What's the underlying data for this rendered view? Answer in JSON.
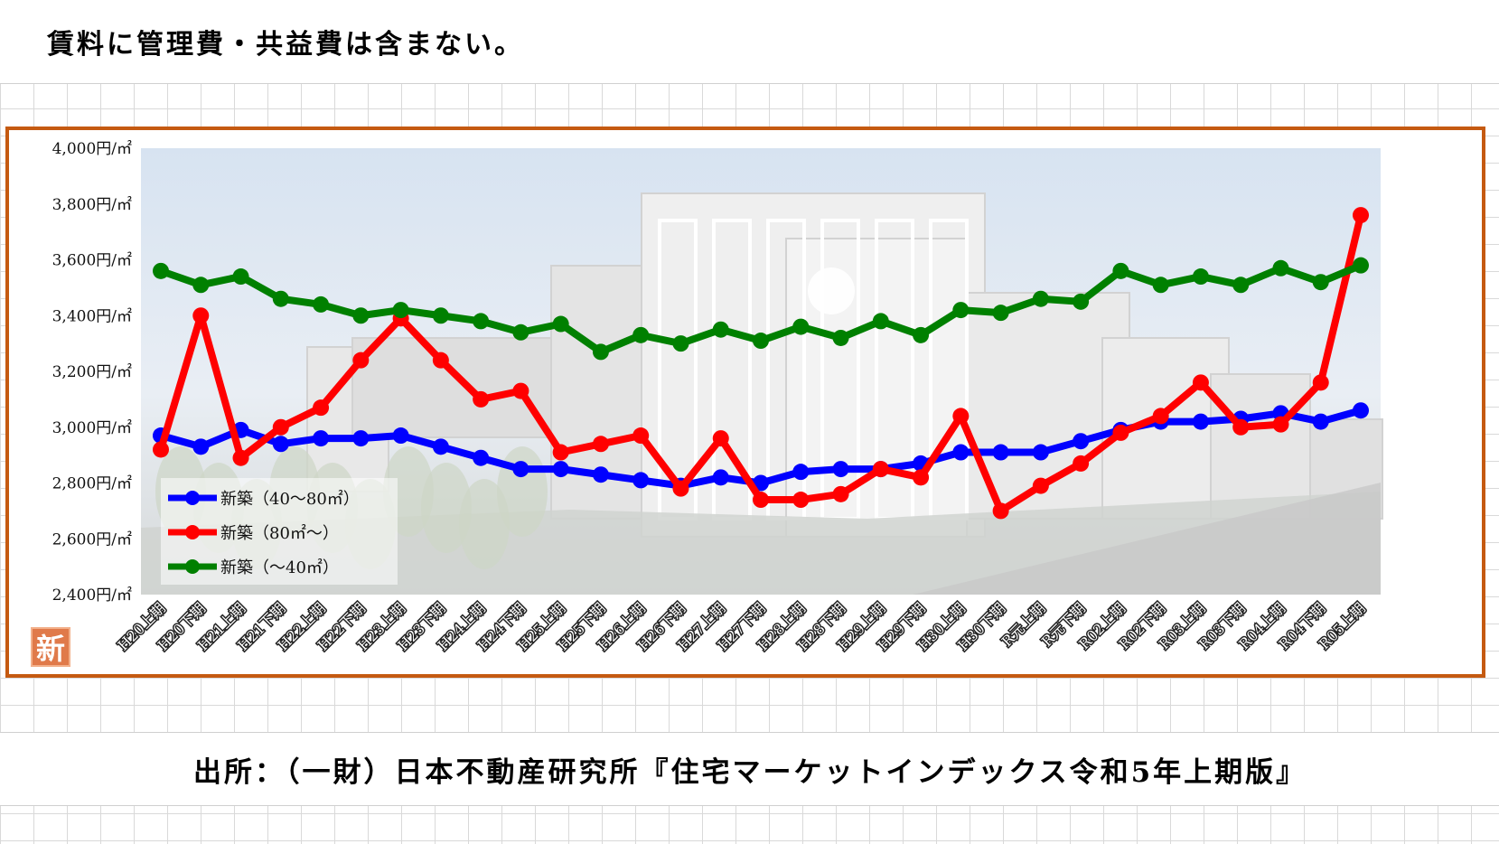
{
  "header": {
    "note": "賃料に管理費・共益費は含まない。"
  },
  "badge": {
    "text": "新"
  },
  "footer": {
    "source": "出所：（一財）日本不動産研究所『住宅マーケットインデックス令和5年上期版』"
  },
  "colors": {
    "frame": "#c55a11",
    "blue": "#0000ff",
    "red": "#ff0000",
    "green": "#008000"
  },
  "chart_data": {
    "type": "line",
    "title": "",
    "xlabel": "",
    "ylabel": "",
    "ylim": [
      2400,
      4000
    ],
    "yticks": [
      2400,
      2600,
      2800,
      3000,
      3200,
      3400,
      3600,
      3800,
      4000
    ],
    "ytick_labels": [
      "2,400円/㎡",
      "2,600円/㎡",
      "2,800円/㎡",
      "3,000円/㎡",
      "3,200円/㎡",
      "3,400円/㎡",
      "3,600円/㎡",
      "3,800円/㎡",
      "4,000円/㎡"
    ],
    "grid": false,
    "legend_position": "bottom-left",
    "categories": [
      "H20上期",
      "H20下期",
      "H21上期",
      "H21下期",
      "H22上期",
      "H22下期",
      "H23上期",
      "H23下期",
      "H24上期",
      "H24下期",
      "H25上期",
      "H25下期",
      "H26上期",
      "H26下期",
      "H27上期",
      "H27下期",
      "H28上期",
      "H28下期",
      "H29上期",
      "H29下期",
      "H30上期",
      "H30下期",
      "R元上期",
      "R元下期",
      "R02上期",
      "R02下期",
      "R03上期",
      "R03下期",
      "R04上期",
      "R04下期",
      "R05上期"
    ],
    "series": [
      {
        "name": "新築（40～80㎡）",
        "color": "#0000ff",
        "values": [
          2970,
          2930,
          2990,
          2940,
          2960,
          2960,
          2970,
          2930,
          2890,
          2850,
          2850,
          2830,
          2810,
          2790,
          2820,
          2800,
          2840,
          2850,
          2850,
          2870,
          2910,
          2910,
          2910,
          2950,
          2990,
          3020,
          3020,
          3030,
          3050,
          3020,
          3060
        ]
      },
      {
        "name": "新築（80㎡～）",
        "color": "#ff0000",
        "values": [
          2920,
          3400,
          2890,
          3000,
          3070,
          3240,
          3390,
          3240,
          3100,
          3130,
          2910,
          2940,
          2970,
          2780,
          2960,
          2740,
          2740,
          2760,
          2850,
          2820,
          3040,
          2700,
          2790,
          2870,
          2980,
          3040,
          3160,
          3000,
          3010,
          3160,
          3760
        ]
      },
      {
        "name": "新築（～40㎡）",
        "color": "#008000",
        "values": [
          3560,
          3510,
          3540,
          3460,
          3440,
          3400,
          3420,
          3400,
          3380,
          3340,
          3370,
          3270,
          3330,
          3300,
          3350,
          3310,
          3360,
          3320,
          3380,
          3330,
          3420,
          3410,
          3460,
          3450,
          3560,
          3510,
          3540,
          3510,
          3570,
          3520,
          3580
        ]
      }
    ]
  }
}
